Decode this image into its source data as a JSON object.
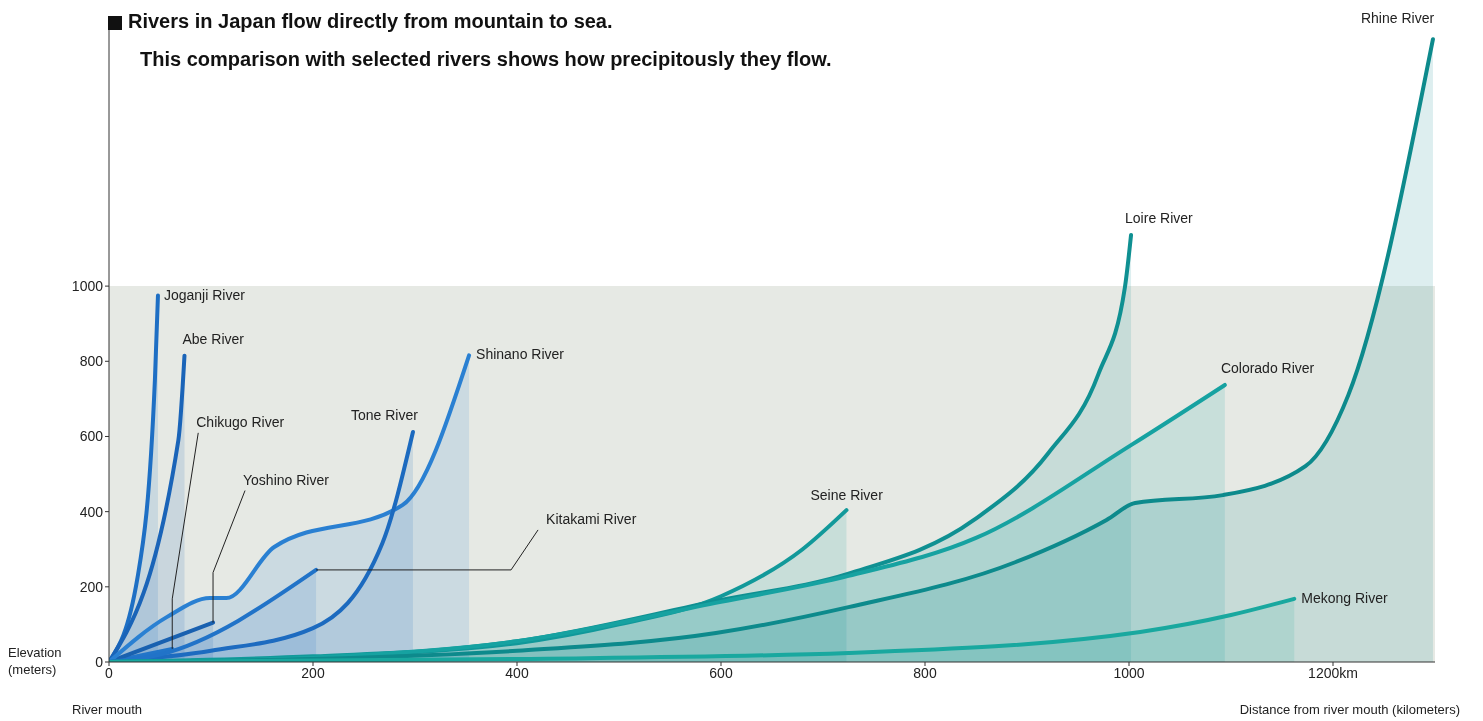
{
  "chart_data": {
    "type": "area",
    "title": "Rivers in Japan flow directly from mountain to sea.",
    "subtitle": "This comparison with selected rivers shows how precipitously they flow.",
    "xlabel": "Distance from river mouth (kilometers)",
    "ylabel": "Elevation (meters)",
    "annotations": [
      "River mouth"
    ],
    "xlim": [
      0,
      1300
    ],
    "xticks": [
      0,
      200,
      400,
      600,
      800,
      1000,
      {
        "value": 1200,
        "label": "1200km"
      }
    ],
    "ylim": [
      0,
      1700
    ],
    "yticks": [
      0,
      200,
      400,
      600,
      800,
      1000
    ],
    "bands": [
      {
        "axis": "y",
        "from": 0,
        "to": 1000,
        "color": "#e6e9e4"
      }
    ],
    "series": [
      {
        "name": "Joganji River",
        "color": "#1e6fc4",
        "x": [
          0,
          28,
          45,
          48
        ],
        "values": [
          0,
          225,
          750,
          975
        ]
      },
      {
        "name": "Abe River",
        "color": "#1a64b8",
        "x": [
          0,
          68,
          74
        ],
        "values": [
          0,
          590,
          815
        ]
      },
      {
        "name": "Chikugo River",
        "color": "#2478cc",
        "x": [
          0,
          62
        ],
        "values": [
          0,
          35
        ]
      },
      {
        "name": "Yoshino River",
        "color": "#175cab",
        "x": [
          0,
          102
        ],
        "values": [
          0,
          105
        ]
      },
      {
        "name": "Shinano River",
        "color": "#2a80d2",
        "x": [
          0,
          57,
          99,
          115,
          162,
          288,
          353
        ],
        "values": [
          0,
          120,
          170,
          170,
          306,
          418,
          816
        ]
      },
      {
        "name": "Tone River",
        "color": "#1c6abf",
        "x": [
          0,
          100,
          200,
          268,
          298
        ],
        "values": [
          0,
          30,
          90,
          316,
          612
        ]
      },
      {
        "name": "Kitakami River",
        "color": "#2173c8",
        "x": [
          0,
          50,
          203
        ],
        "values": [
          0,
          20,
          245
        ]
      },
      {
        "name": "Seine River",
        "color": "#12999a",
        "x": [
          0,
          200,
          400,
          500,
          600,
          680,
          723
        ],
        "values": [
          0,
          15,
          50,
          100,
          175,
          300,
          404
        ]
      },
      {
        "name": "Loire River",
        "color": "#0f9092",
        "x": [
          0,
          200,
          400,
          600,
          725,
          848,
          921,
          970,
          996,
          1002
        ],
        "values": [
          0,
          12,
          55,
          165,
          235,
          378,
          556,
          766,
          997,
          1136
        ]
      },
      {
        "name": "Colorado River",
        "color": "#16a2a1",
        "x": [
          0,
          200,
          400,
          600,
          725,
          850,
          1002,
          1094
        ],
        "values": [
          0,
          12,
          55,
          160,
          229,
          330,
          577,
          737
        ]
      },
      {
        "name": "Rhine River",
        "color": "#0d8a8c",
        "x": [
          0,
          200,
          400,
          595,
          725,
          889,
          978,
          1006,
          1092,
          1173,
          1215,
          1298
        ],
        "values": [
          0,
          8,
          30,
          77,
          146,
          266,
          378,
          423,
          444,
          521,
          710,
          1657
        ]
      },
      {
        "name": "Mekong River",
        "color": "#19a89f",
        "x": [
          0,
          400,
          725,
          1011,
          1100,
          1162
        ],
        "values": [
          0,
          8,
          24,
          80,
          125,
          168
        ]
      }
    ]
  }
}
